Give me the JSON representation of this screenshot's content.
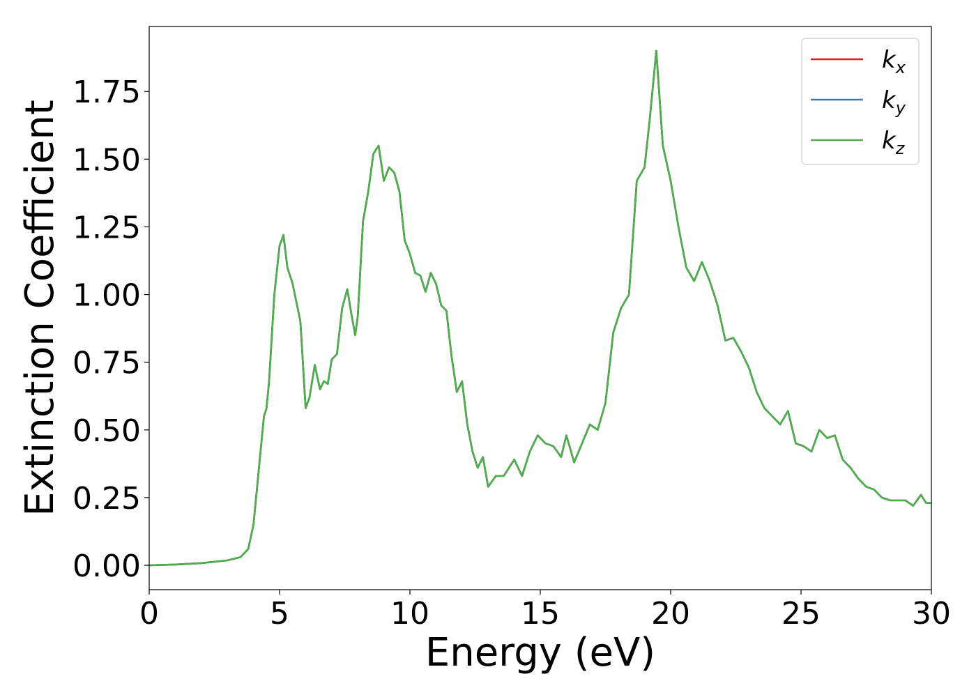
{
  "chart_data": {
    "type": "line",
    "title": "",
    "xlabel": "Energy (eV)",
    "ylabel": "Extinction Coefficient",
    "xlim": [
      0,
      30
    ],
    "ylim": [
      -0.09,
      1.99
    ],
    "xticks": [
      "0",
      "5",
      "10",
      "15",
      "20",
      "25",
      "30"
    ],
    "yticks": [
      "0.00",
      "0.25",
      "0.50",
      "0.75",
      "1.00",
      "1.25",
      "1.50",
      "1.75"
    ],
    "grid": false,
    "legend_position": "top-right",
    "legend": [
      {
        "base": "k",
        "sub": "x"
      },
      {
        "base": "k",
        "sub": "y"
      },
      {
        "base": "k",
        "sub": "z"
      }
    ],
    "colors": {
      "kx": "#e41a1c",
      "ky": "#377eb8",
      "kz": "#4daf4a"
    },
    "x": [
      0,
      1,
      2,
      3,
      3.5,
      3.8,
      4.0,
      4.2,
      4.4,
      4.5,
      4.6,
      4.8,
      5.0,
      5.15,
      5.3,
      5.5,
      5.8,
      6.0,
      6.15,
      6.35,
      6.55,
      6.7,
      6.85,
      7.0,
      7.2,
      7.4,
      7.6,
      7.75,
      7.9,
      8.0,
      8.2,
      8.4,
      8.6,
      8.8,
      9.0,
      9.2,
      9.4,
      9.6,
      9.8,
      10.0,
      10.2,
      10.4,
      10.6,
      10.8,
      11.0,
      11.2,
      11.4,
      11.6,
      11.8,
      12.0,
      12.2,
      12.4,
      12.6,
      12.8,
      13.0,
      13.3,
      13.6,
      14.0,
      14.3,
      14.6,
      14.9,
      15.2,
      15.5,
      15.8,
      16.0,
      16.3,
      16.6,
      16.9,
      17.2,
      17.5,
      17.8,
      18.1,
      18.4,
      18.7,
      19.0,
      19.2,
      19.45,
      19.7,
      20.0,
      20.3,
      20.6,
      20.9,
      21.2,
      21.5,
      21.8,
      22.1,
      22.4,
      22.7,
      23.0,
      23.3,
      23.6,
      23.9,
      24.2,
      24.5,
      24.8,
      25.1,
      25.4,
      25.7,
      26.0,
      26.3,
      26.6,
      26.9,
      27.2,
      27.5,
      27.8,
      28.1,
      28.4,
      28.7,
      29.0,
      29.3,
      29.6,
      29.8,
      30.0
    ],
    "series": [
      {
        "name": "kx",
        "values": [
          0.0,
          0.003,
          0.008,
          0.018,
          0.03,
          0.06,
          0.15,
          0.35,
          0.55,
          0.58,
          0.68,
          1.0,
          1.18,
          1.22,
          1.1,
          1.04,
          0.9,
          0.58,
          0.62,
          0.74,
          0.65,
          0.68,
          0.67,
          0.76,
          0.78,
          0.95,
          1.02,
          0.93,
          0.85,
          0.92,
          1.27,
          1.38,
          1.52,
          1.55,
          1.42,
          1.47,
          1.45,
          1.38,
          1.2,
          1.15,
          1.08,
          1.07,
          1.01,
          1.08,
          1.04,
          0.96,
          0.94,
          0.77,
          0.64,
          0.68,
          0.52,
          0.42,
          0.36,
          0.4,
          0.29,
          0.33,
          0.33,
          0.39,
          0.33,
          0.42,
          0.48,
          0.45,
          0.44,
          0.4,
          0.48,
          0.38,
          0.45,
          0.52,
          0.5,
          0.6,
          0.86,
          0.95,
          1.0,
          1.42,
          1.47,
          1.65,
          1.9,
          1.55,
          1.42,
          1.25,
          1.1,
          1.05,
          1.12,
          1.05,
          0.96,
          0.83,
          0.84,
          0.79,
          0.73,
          0.64,
          0.58,
          0.55,
          0.52,
          0.57,
          0.45,
          0.44,
          0.42,
          0.5,
          0.47,
          0.48,
          0.39,
          0.36,
          0.32,
          0.29,
          0.28,
          0.25,
          0.24,
          0.24,
          0.24,
          0.22,
          0.26,
          0.23,
          0.23
        ]
      },
      {
        "name": "ky",
        "values": [
          0.0,
          0.003,
          0.008,
          0.018,
          0.03,
          0.06,
          0.15,
          0.35,
          0.55,
          0.58,
          0.68,
          1.0,
          1.18,
          1.22,
          1.1,
          1.04,
          0.9,
          0.58,
          0.62,
          0.74,
          0.65,
          0.68,
          0.67,
          0.76,
          0.78,
          0.95,
          1.02,
          0.93,
          0.85,
          0.92,
          1.27,
          1.38,
          1.52,
          1.55,
          1.42,
          1.47,
          1.45,
          1.38,
          1.2,
          1.15,
          1.08,
          1.07,
          1.01,
          1.08,
          1.04,
          0.96,
          0.94,
          0.77,
          0.64,
          0.68,
          0.52,
          0.42,
          0.36,
          0.4,
          0.29,
          0.33,
          0.33,
          0.39,
          0.33,
          0.42,
          0.48,
          0.45,
          0.44,
          0.4,
          0.48,
          0.38,
          0.45,
          0.52,
          0.5,
          0.6,
          0.86,
          0.95,
          1.0,
          1.42,
          1.47,
          1.65,
          1.9,
          1.55,
          1.42,
          1.25,
          1.1,
          1.05,
          1.12,
          1.05,
          0.96,
          0.83,
          0.84,
          0.79,
          0.73,
          0.64,
          0.58,
          0.55,
          0.52,
          0.57,
          0.45,
          0.44,
          0.42,
          0.5,
          0.47,
          0.48,
          0.39,
          0.36,
          0.32,
          0.29,
          0.28,
          0.25,
          0.24,
          0.24,
          0.24,
          0.22,
          0.26,
          0.23,
          0.23
        ]
      },
      {
        "name": "kz",
        "values": [
          0.0,
          0.003,
          0.008,
          0.018,
          0.03,
          0.06,
          0.15,
          0.35,
          0.55,
          0.58,
          0.68,
          1.0,
          1.18,
          1.22,
          1.1,
          1.04,
          0.9,
          0.58,
          0.62,
          0.74,
          0.65,
          0.68,
          0.67,
          0.76,
          0.78,
          0.95,
          1.02,
          0.93,
          0.85,
          0.92,
          1.27,
          1.38,
          1.52,
          1.55,
          1.42,
          1.47,
          1.45,
          1.38,
          1.2,
          1.15,
          1.08,
          1.07,
          1.01,
          1.08,
          1.04,
          0.96,
          0.94,
          0.77,
          0.64,
          0.68,
          0.52,
          0.42,
          0.36,
          0.4,
          0.29,
          0.33,
          0.33,
          0.39,
          0.33,
          0.42,
          0.48,
          0.45,
          0.44,
          0.4,
          0.48,
          0.38,
          0.45,
          0.52,
          0.5,
          0.6,
          0.86,
          0.95,
          1.0,
          1.42,
          1.47,
          1.65,
          1.9,
          1.55,
          1.42,
          1.25,
          1.1,
          1.05,
          1.12,
          1.05,
          0.96,
          0.83,
          0.84,
          0.79,
          0.73,
          0.64,
          0.58,
          0.55,
          0.52,
          0.57,
          0.45,
          0.44,
          0.42,
          0.5,
          0.47,
          0.48,
          0.39,
          0.36,
          0.32,
          0.29,
          0.28,
          0.25,
          0.24,
          0.24,
          0.24,
          0.22,
          0.26,
          0.23,
          0.23
        ]
      }
    ]
  }
}
